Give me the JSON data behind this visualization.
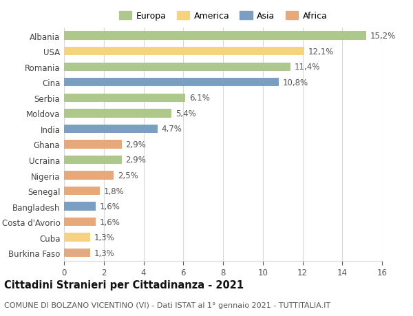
{
  "countries": [
    "Albania",
    "USA",
    "Romania",
    "Cina",
    "Serbia",
    "Moldova",
    "India",
    "Ghana",
    "Ucraina",
    "Nigeria",
    "Senegal",
    "Bangladesh",
    "Costa d'Avorio",
    "Cuba",
    "Burkina Faso"
  ],
  "values": [
    15.2,
    12.1,
    11.4,
    10.8,
    6.1,
    5.4,
    4.7,
    2.9,
    2.9,
    2.5,
    1.8,
    1.6,
    1.6,
    1.3,
    1.3
  ],
  "continents": [
    "Europa",
    "America",
    "Europa",
    "Asia",
    "Europa",
    "Europa",
    "Asia",
    "Africa",
    "Europa",
    "Africa",
    "Africa",
    "Asia",
    "Africa",
    "America",
    "Africa"
  ],
  "colors": {
    "Europa": "#adc88a",
    "America": "#f5d47e",
    "Asia": "#7a9fc2",
    "Africa": "#e8a97a"
  },
  "legend_order": [
    "Europa",
    "America",
    "Asia",
    "Africa"
  ],
  "title": "Cittadini Stranieri per Cittadinanza - 2021",
  "subtitle": "COMUNE DI BOLZANO VICENTINO (VI) - Dati ISTAT al 1° gennaio 2021 - TUTTITALIA.IT",
  "xlim": [
    0,
    16
  ],
  "xticks": [
    0,
    2,
    4,
    6,
    8,
    10,
    12,
    14,
    16
  ],
  "background_color": "#ffffff",
  "grid_color": "#d8d8d8",
  "bar_height": 0.55,
  "label_fontsize": 8.5,
  "tick_fontsize": 8.5,
  "title_fontsize": 10.5,
  "subtitle_fontsize": 8.0
}
